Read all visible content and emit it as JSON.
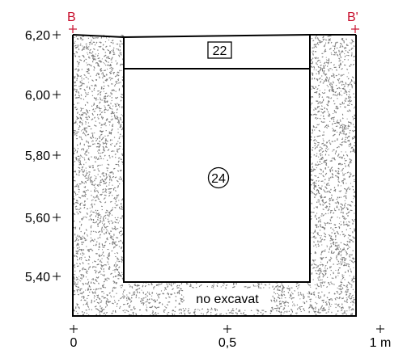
{
  "section": {
    "start_label": "B",
    "end_label": "B'",
    "section_mark_color": "#c8102e",
    "outline_color": "#000000",
    "fill_color": "#7a7a7a"
  },
  "axis_y": {
    "ticks": [
      "6,20",
      "6,00",
      "5,80",
      "5,60",
      "5,40"
    ]
  },
  "axis_x": {
    "ticks": [
      "0",
      "0,5",
      "1 m"
    ]
  },
  "units": {
    "unit_22": "22",
    "unit_24": "24"
  },
  "annotations": {
    "unexcavated": "no excavat"
  }
}
